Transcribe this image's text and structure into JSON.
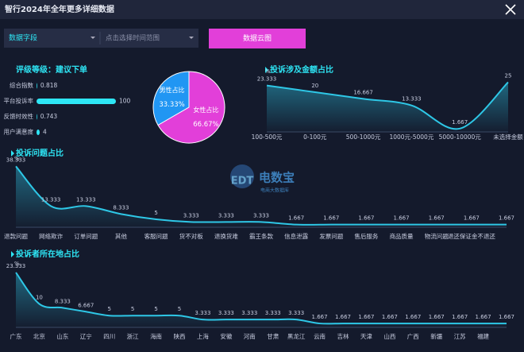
{
  "header": {
    "title": "智行2024年全年更多详细数据"
  },
  "controls": {
    "field": "数据字段",
    "time_range": "点击选择时间范围",
    "button": "数据云图"
  },
  "watermark": {
    "logo": "EDT",
    "brand": "电数宝",
    "sub": "电商大数据库"
  },
  "chart_data": [
    {
      "type": "bar",
      "title": "评级等级：建议下单",
      "categories": [
        "综合指数",
        "平台投诉率",
        "反馈时效性",
        "用户满意度"
      ],
      "values": [
        0.818,
        100,
        0.743,
        4
      ],
      "xlim": [
        0,
        100
      ],
      "color": "#2ee6f5"
    },
    {
      "type": "pie",
      "categories": [
        "男性占比",
        "女性占比"
      ],
      "values": [
        33.33,
        66.67
      ],
      "value_labels": [
        "33.33%",
        "66.67%"
      ],
      "colors": [
        "#2196f3",
        "#e23fd9"
      ]
    },
    {
      "type": "line",
      "title": "投诉涉及金额占比",
      "unit": "%",
      "categories": [
        "100-500元",
        "0-100元",
        "500-1000元",
        "1000元-5000元",
        "5000-10000元",
        "未选择金额"
      ],
      "values": [
        23.333,
        20,
        16.667,
        13.333,
        1.667,
        25
      ],
      "ylim": [
        0,
        28
      ],
      "color": "#2ec7e6"
    },
    {
      "type": "line",
      "title": "投诉问题占比",
      "unit": "%",
      "categories": [
        "退款问题",
        "网络欺诈",
        "订单问题",
        "其他",
        "客服问题",
        "货不对板",
        "退换货难",
        "霸王条款",
        "信息泄露",
        "发票问题",
        "售后服务",
        "商品质量",
        "物流问题",
        "退还保证金不退还",
        null
      ],
      "values": [
        38.333,
        13.333,
        13.333,
        8.333,
        5,
        3.333,
        3.333,
        3.333,
        1.667,
        1.667,
        1.667,
        1.667,
        1.667,
        1.667,
        1.667
      ],
      "ylim": [
        0,
        40
      ],
      "color": "#2ec7e6"
    },
    {
      "type": "line",
      "title": "投诉者所在地占比",
      "unit": "%",
      "categories": [
        "广东",
        "北京",
        "山东",
        "辽宁",
        "四川",
        "浙江",
        "海南",
        "陕西",
        "上海",
        "安徽",
        "河南",
        "甘肃",
        "黑龙江",
        "云南",
        "吉林",
        "天津",
        "山西",
        "广西",
        "新疆",
        "江苏",
        "福建",
        null
      ],
      "values": [
        23.333,
        10,
        8.333,
        6.667,
        5,
        5,
        5,
        5,
        3.333,
        3.333,
        3.333,
        3.333,
        3.333,
        1.667,
        1.667,
        1.667,
        1.667,
        1.667,
        1.667,
        1.667,
        1.667,
        1.667
      ],
      "ylim": [
        0,
        25
      ],
      "color": "#2ec7e6"
    }
  ]
}
